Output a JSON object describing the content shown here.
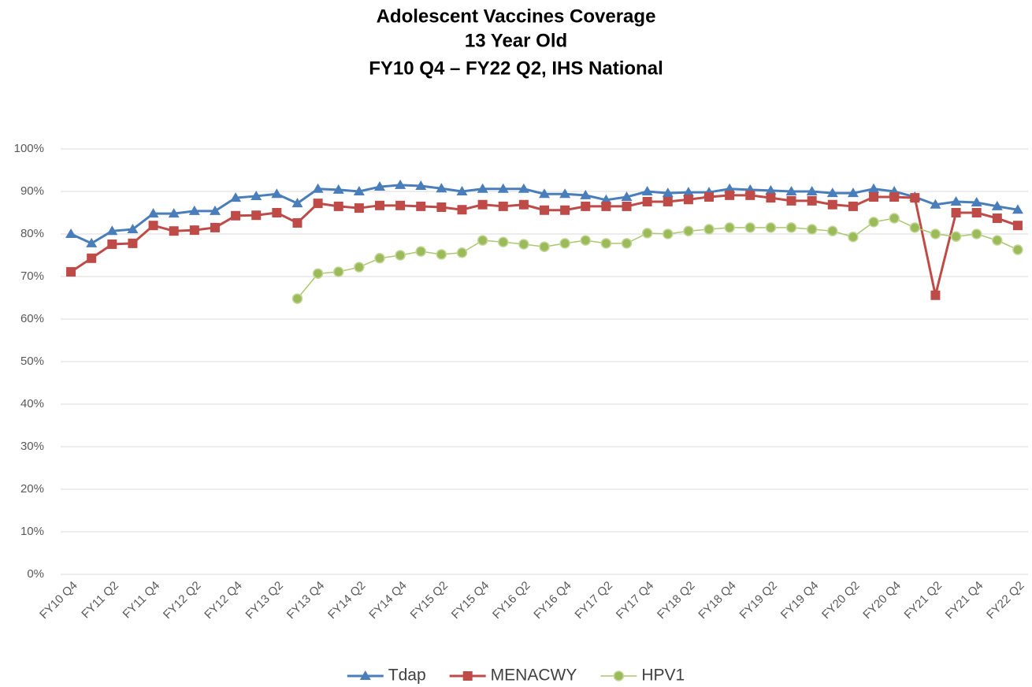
{
  "chart_data": {
    "type": "line",
    "title": "Adolescent Vaccines Coverage",
    "subtitle": [
      "13 Year Old",
      "FY10 Q4 – FY22 Q2, IHS National"
    ],
    "categories": [
      "FY10 Q4",
      null,
      "FY11 Q2",
      null,
      "FY11 Q4",
      null,
      "FY12 Q2",
      null,
      "FY12 Q4",
      null,
      "FY13 Q2",
      null,
      "FY13 Q4",
      null,
      "FY14 Q2",
      null,
      "FY14 Q4",
      null,
      "FY15 Q2",
      null,
      "FY15 Q4",
      null,
      "FY16 Q2",
      null,
      "FY16 Q4",
      null,
      "FY17 Q2",
      null,
      "FY17 Q4",
      null,
      "FY18 Q2",
      null,
      "FY18 Q4",
      null,
      "FY19 Q2",
      null,
      "FY19 Q4",
      null,
      "FY20 Q2",
      null,
      "FY20 Q4",
      null,
      "FY21 Q2",
      null,
      "FY21 Q4",
      null,
      "FY22 Q2"
    ],
    "series": [
      {
        "name": "Tdap",
        "color": "#4a7ebb",
        "marker": "triangle",
        "values": [
          80.0,
          77.8,
          80.7,
          81.1,
          84.8,
          84.8,
          85.4,
          85.4,
          88.5,
          88.9,
          89.4,
          87.2,
          90.6,
          90.4,
          90.0,
          91.1,
          91.5,
          91.3,
          90.7,
          90.0,
          90.6,
          90.6,
          90.6,
          89.4,
          89.4,
          89.1,
          88.0,
          88.7,
          90.0,
          89.6,
          89.8,
          89.8,
          90.6,
          90.4,
          90.2,
          90.0,
          90.0,
          89.6,
          89.6,
          90.6,
          90.0,
          88.7,
          86.9,
          87.6,
          87.4,
          86.5,
          85.7
        ]
      },
      {
        "name": "MENACWY",
        "color": "#be4b48",
        "marker": "square",
        "values": [
          71.1,
          74.3,
          77.6,
          77.8,
          82.0,
          80.7,
          80.9,
          81.5,
          84.3,
          84.4,
          85.0,
          82.6,
          87.2,
          86.5,
          86.1,
          86.7,
          86.7,
          86.5,
          86.3,
          85.7,
          86.9,
          86.5,
          86.9,
          85.6,
          85.6,
          86.5,
          86.5,
          86.5,
          87.6,
          87.6,
          88.1,
          88.7,
          89.1,
          89.1,
          88.5,
          87.8,
          87.8,
          86.9,
          86.5,
          88.7,
          88.7,
          88.5,
          65.6,
          85.0,
          85.0,
          83.7,
          82.0
        ]
      },
      {
        "name": "HPV1",
        "color": "#9bbb59",
        "marker": "circle",
        "values": [
          null,
          null,
          null,
          null,
          null,
          null,
          null,
          null,
          null,
          null,
          null,
          64.8,
          70.7,
          71.1,
          72.2,
          74.3,
          75.0,
          75.9,
          75.2,
          75.6,
          78.5,
          78.1,
          77.6,
          77.0,
          77.8,
          78.5,
          77.8,
          77.8,
          80.2,
          80.0,
          80.7,
          81.1,
          81.5,
          81.5,
          81.5,
          81.5,
          81.1,
          80.7,
          79.3,
          82.8,
          83.7,
          81.5,
          80.0,
          79.4,
          80.0,
          78.5,
          76.3
        ]
      }
    ],
    "ylim": [
      0,
      100
    ],
    "yticks": [
      {
        "value": 0,
        "label": "0%"
      },
      {
        "value": 10,
        "label": "10%"
      },
      {
        "value": 20,
        "label": "20%"
      },
      {
        "value": 30,
        "label": "30%"
      },
      {
        "value": 40,
        "label": "40%"
      },
      {
        "value": 50,
        "label": "50%"
      },
      {
        "value": 60,
        "label": "60%"
      },
      {
        "value": 70,
        "label": "70%"
      },
      {
        "value": 80,
        "label": "80%"
      },
      {
        "value": 90,
        "label": "90%"
      },
      {
        "value": 100,
        "label": "100%"
      }
    ],
    "grid": true,
    "legend": "bottom"
  }
}
